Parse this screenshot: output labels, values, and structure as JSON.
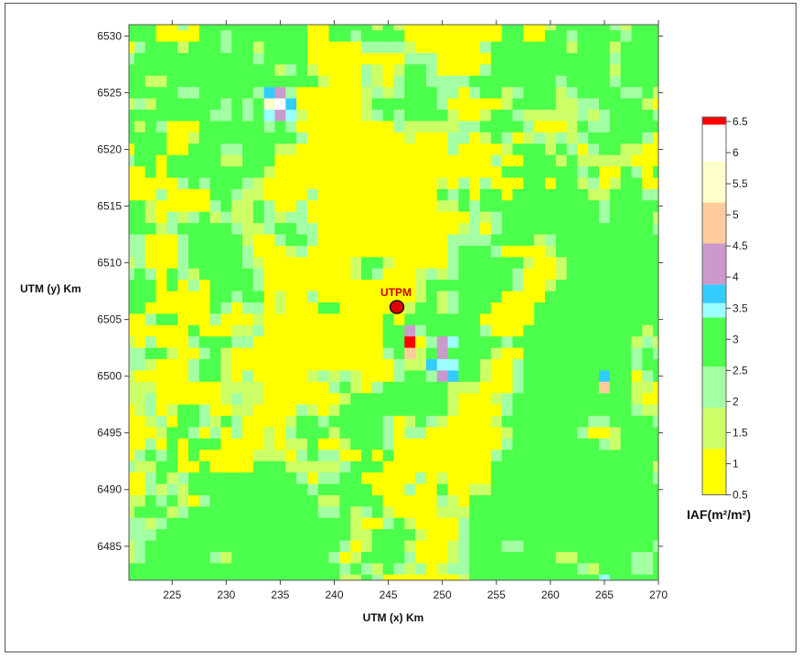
{
  "chart_data": {
    "type": "heatmap",
    "xlabel": "UTM (x) Km",
    "ylabel": "UTM (y) Km",
    "xlim": [
      221,
      270
    ],
    "ylim": [
      6482,
      6531
    ],
    "x_ticks": [
      "225",
      "230",
      "235",
      "240",
      "245",
      "250",
      "255",
      "260",
      "265",
      "270"
    ],
    "y_ticks": [
      "6485",
      "6490",
      "6495",
      "6500",
      "6505",
      "6510",
      "6515",
      "6520",
      "6525",
      "6530"
    ],
    "cell_size_km": 1,
    "grid_x_start": 221,
    "grid_y_start_top": 6531,
    "colorbar": {
      "title": "IAF(m²/m²)",
      "tick_labels": [
        "0.5",
        "1",
        "1.5",
        "2",
        "2.5",
        "3",
        "3.5",
        "4",
        "4.5",
        "5",
        "5.5",
        "6",
        "6.5"
      ],
      "range": [
        0.5,
        6.5
      ],
      "classes": [
        {
          "code": "Y",
          "from": 0.5,
          "to": 1.24,
          "color": "#ffff00"
        },
        {
          "code": "L",
          "from": 1.24,
          "to": 1.9,
          "color": "#ccff66"
        },
        {
          "code": "P",
          "from": 1.9,
          "to": 2.56,
          "color": "#a3ffa3"
        },
        {
          "code": "G",
          "from": 2.56,
          "to": 3.35,
          "color": "#4cff4c"
        },
        {
          "code": "C",
          "from": 3.35,
          "to": 3.58,
          "color": "#9cffff"
        },
        {
          "code": "B",
          "from": 3.58,
          "to": 3.88,
          "color": "#33ccff"
        },
        {
          "code": "M",
          "from": 3.88,
          "to": 4.54,
          "color": "#cc99cc"
        },
        {
          "code": "O",
          "from": 4.54,
          "to": 5.2,
          "color": "#ffcc99"
        },
        {
          "code": "W",
          "from": 5.2,
          "to": 5.86,
          "color": "#ffffcc"
        },
        {
          "code": "X",
          "from": 5.86,
          "to": 6.45,
          "color": "#ffffff"
        },
        {
          "code": "R",
          "from": 6.45,
          "to": 6.5,
          "color": "#ff0000"
        }
      ]
    },
    "grid_rows": [
      "GGGYYPYGGGGGGGGGGYYGGGGLGLYYYYYYYYYGGYYLGGGGGPLGGG",
      "GGGYYYYGGPGGGGGGGYYGGPGGGGYYYYYYYYYGGYYGGPGGGGPGGG",
      "YPGGGLGGGPGGLGGGGYYYYYPPPPLYYYYYYPGGGGGGGLGGGLGGGG",
      "PGGGGGGGGGGGPGGGGYYYYYYYYYPPPYYYYYGGGGGGGGGGGPGGGG",
      "GGGGGGGGGGGGGGLPGLYYYYPLYLGGPYYYYPGGGGGGGGGGGLGGGG",
      "GGLLGGGGGGGGGGGGGGLYYYPLYPGGPPPPGGGGGGGGPGGGGPGGGG",
      "GGGGGPPGGGGGPBMPYYYYYYLPLPGGGPPYPGGLPGGGLPGGGGPPGL",
      "LPLGGGGGGPGPGWXBYYYYYYLGGGGGGPYYYYYLGGGGLLPPGGGGLY",
      "GGGGGGGGPPGPGCMCLYYYYYLPGPGGGGLYYLGGPLLLLLPLPGGGGP",
      "GLGPYYYGGGGGGPGPYYYYYYYYYPLLLLLPPGGGGPYYYLGPPGGGGG",
      "GGGGYYLGGGGGGGGGPYYYYYYYYYLYYYPPYLGPYLPLPLPGGGGGPY",
      "YGGGYYGGGPPGGGLLYYYYYYYYYYYYYYPYYYYLGGGLGPYPGGLLYY",
      "PGGYGGGGGLLGGGYYYYYYYYYYYYYYYYYYYYPYYGGGLGLLLLLYYY",
      "YYGYGGGGGGGGGLYYYYYYYYYYYYYYYYYYYYYGGGGGGGPGYYGPYG",
      "YYYYYPGPGGGPLYYYYYYYYYYYYYYYYLYPYPYYYGGYGGLPYLGGYY",
      "YYYPYYYYGGPLLYYYYPYYYYYYYYYYYGPGYGGYGGGGGGGLLGGGPP",
      "GGLYYYYYPGLLGPYYPYYYYYYYYYYYYLLGPGGGGGGGGGGGPGGGGG",
      "GGLYPLPGLPLLGPLPPYYYYYYYYYYYYYYYPLPGGGGGGGGGPGGGGL",
      "GGGLPGGGGGPLLPGGPPYYYYYYYYYYYYYLPYPGGGGGGGGGGGGGGP",
      "PPYYYPGGGGGLYYPGGPYYYYYYYYYYYYPPPPGGGGLPGGGGGGGGGG",
      "PPYYYPGGGGGPYYYLPYYYYYYYYYYYYYPGGGPYYYYLGGGGGGGGGG",
      "LPYYYPGGGGGPLYYYYYYYYLGGLYYYYYPGGGGGGLYYLGGGGGGGGG",
      "PGPYGPLGGGGGPYYYYYYYYLGPYYYLPLPGGGGGPYYYLGGGGGGGGG",
      "GGGYGYPYGGGGPYYYYYYYYYYYYYYLGGGGGGGGPYYLGGGGGGGGGG",
      "GGGYYYYYGGPGGYLYYPYYYYYYYYYLGLPGGGGYYYYGGGGGGGGGGG",
      "GGYYYYYYGPYPPYLYYYGGYYYYYYLGGLPGGGYYYYGGGGGGGGGGGG",
      "YYPGGYYYPYYYLYYYYYYYYYYYGYGGGGGGGYYYYYGGGGGGGGGGGG",
      "YYYYYYGYYYLLPYYYYYYYYYYYGGMPGGGGGPYYYGGGGGGGGGGGLG",
      "LYPYYYPGGGPPYYYYYYYYYYYYGGRYPMCGGGGPGGGGGGGGGGGLPL",
      "PPGGLYYPGLYYYYYYYYYYYYYYPGOLGMGGGGLYYGGGGGGGGGGPGP",
      "PPLYYYPGGLYYYYYYYYYYYYYYYPLLBCCGGLYYPGGGGGGGGGGPGG",
      "LYYYYYPGGLYPYYYYYLPLPLYYYPGGPMBGGLYYPGGGGGGGBGGYPG",
      "LLLYYYYYYLLLLYYYYYYPGLYPGGGGGGLLLYYYPGGGGGGGOGGLLY",
      "LLPYYYYYYLPLLYYYYYYYLGGGGGGGGGLYYYLPGGGGGGGGGGGLYY",
      "YLPYLGGPYYLLYYYYPLYLGGGGGGGGGGLYYYYPGGGGGGGGGGGPLL",
      "YYLPYGGPLGPYYYYLGGPGGGGGPYLGPLYYYYLGGGGGGGGPPGGGGP",
      "YYYLGGPYPYPYYLYPGGGLGGGGPYPPYYYYYYYLGGGGGGPYYLGGGG",
      "YYPYGYGGGYYYYLYLLGYYLGGGPYYYYYYYYYYPGGGGGGGGPLGGGG",
      "YPGPGYGYYYYYLLLYPGPPYYGYGYYYYYYYYYPGGGGGGGGGGGGGGG",
      "PLLGGYYGYYYYGGGLLLLLPGGGYYYYYYYYYYGGGGGGGGGGGGGGGL",
      "YYPGLPGGGGGGGGGGPYPPGGYYYYYPYLYYYYGGGGGGGGGGGGGGGP",
      "YYPLPLGGGGGGGGGGGPGGGGGYYYPYYGYYLLGGGGGGGGGGGGGGGG",
      "LLGPGLYPGGGGGGGGGGLLGGGGYYYYYPLYGGGGGGGGGGGGGGGGGG",
      "LGGGLPGGGGGGGGGGGGPPGLPGLYYYYLLLGGGGGGGGGGGGGGGGGG",
      "PPLPGGGGGGGGGGGGGGGGGLYYPGLYYYYPGGGGGGGGGGGGGGGGGG",
      "PPPGGGGGGGGGGGGGGGGGGLLGGGGLYYYPGGGGGGGGGGGGGGGGGG",
      "LPGGGGGGGGGGGGGGGGGGPYLGGGLYYYLPGGGPPGGGGGGGGGGGGP",
      "LPGGGGGGPLGGGGGGGGGPYLGGGGPYYYLPGGGGGGGGLLGGGGGPPG",
      "GGGGGGGGGGGGGGGGGGGGPGPLGPLPYLPPGGGGGGGGGGPLGGGPPG",
      "GGGGGGGGGGGGGGGGGGGGLLGPYYYYYYYLGGGGGGGGGGGGCGGGGG"
    ],
    "annotations": [
      {
        "label": "UTPM",
        "x": 245.8,
        "y": 6506.1,
        "marker_color": "#e00000"
      }
    ]
  }
}
